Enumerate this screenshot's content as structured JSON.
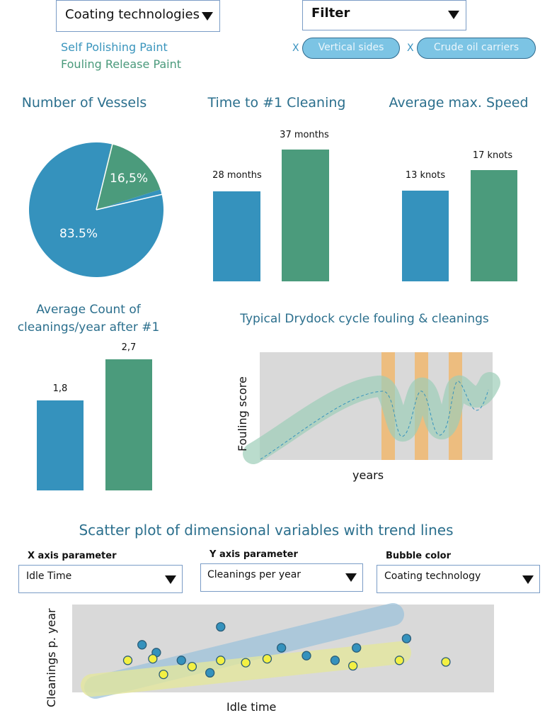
{
  "top": {
    "coating_dropdown": {
      "label": "Coating technologies"
    },
    "legend": [
      {
        "label": "Self Polishing Paint",
        "color": "#3a95bd"
      },
      {
        "label": "Fouling Release Paint",
        "color": "#4a9a7b"
      }
    ],
    "filter": {
      "label": "Filter"
    },
    "chips": [
      {
        "remove": "X",
        "label": "Vertical sides"
      },
      {
        "remove": "X",
        "label": "Crude oil carriers"
      }
    ]
  },
  "colors": {
    "blue": "#3592bd",
    "green": "#4b9b7c",
    "title": "#2b6f8d",
    "cleaning": "#f0b76f"
  },
  "charts": {
    "vessels": {
      "title": "Number of Vessels",
      "chart_data": {
        "type": "pie",
        "slices": [
          {
            "label": "83.5%",
            "value": 83.5,
            "color": "#3592bd"
          },
          {
            "label": "16,5%",
            "value": 16.5,
            "color": "#4b9b7c"
          }
        ]
      }
    },
    "cleaning_time": {
      "title": "Time to #1 Cleaning",
      "chart_data": {
        "type": "bar",
        "values": [
          28,
          37
        ],
        "labels": [
          "28 months",
          "37 months"
        ],
        "colors": [
          "#3592bd",
          "#4b9b7c"
        ]
      }
    },
    "speed": {
      "title": "Average max. Speed",
      "chart_data": {
        "type": "bar",
        "values": [
          13,
          17
        ],
        "labels": [
          "13 knots",
          "17 knots"
        ],
        "colors": [
          "#3592bd",
          "#4b9b7c"
        ]
      }
    },
    "cleanings_count": {
      "title_line1": "Average Count of",
      "title_line2": "cleanings/year after #1",
      "chart_data": {
        "type": "bar",
        "values": [
          1.8,
          2.7
        ],
        "labels": [
          "1,8",
          "2,7"
        ],
        "colors": [
          "#3592bd",
          "#4b9b7c"
        ]
      }
    },
    "drydock": {
      "title": "Typical Drydock cycle fouling & cleanings",
      "ylabel": "Fouling score",
      "xlabel": "years"
    }
  },
  "scatter": {
    "title": "Scatter plot of dimensional variables with trend lines",
    "x_param": {
      "header": "X axis parameter",
      "value": "Idle Time"
    },
    "y_param": {
      "header": "Y axis parameter",
      "value": "Cleanings per year"
    },
    "bubble": {
      "header": "Bubble color",
      "value": "Coating technology"
    },
    "ylabel": "Cleanings p. year",
    "xlabel": "Idle time",
    "chart_data": {
      "type": "scatter",
      "x_range": [
        0,
        100
      ],
      "y_range": [
        0,
        100
      ],
      "series": [
        {
          "color": "#3592bd",
          "points": [
            [
              36,
              75
            ],
            [
              18,
              42
            ],
            [
              25,
              32
            ],
            [
              14,
              52
            ],
            [
              53,
              48
            ],
            [
              60,
              38
            ],
            [
              88,
              60
            ],
            [
              68,
              32
            ],
            [
              74,
              48
            ],
            [
              33,
              16
            ]
          ]
        },
        {
          "color": "#f3f043",
          "points": [
            [
              10,
              32
            ],
            [
              17,
              34
            ],
            [
              28,
              24
            ],
            [
              36,
              32
            ],
            [
              43,
              29
            ],
            [
              49,
              34
            ],
            [
              73,
              25
            ],
            [
              86,
              32
            ],
            [
              99,
              30
            ],
            [
              20,
              14
            ]
          ]
        }
      ]
    }
  }
}
